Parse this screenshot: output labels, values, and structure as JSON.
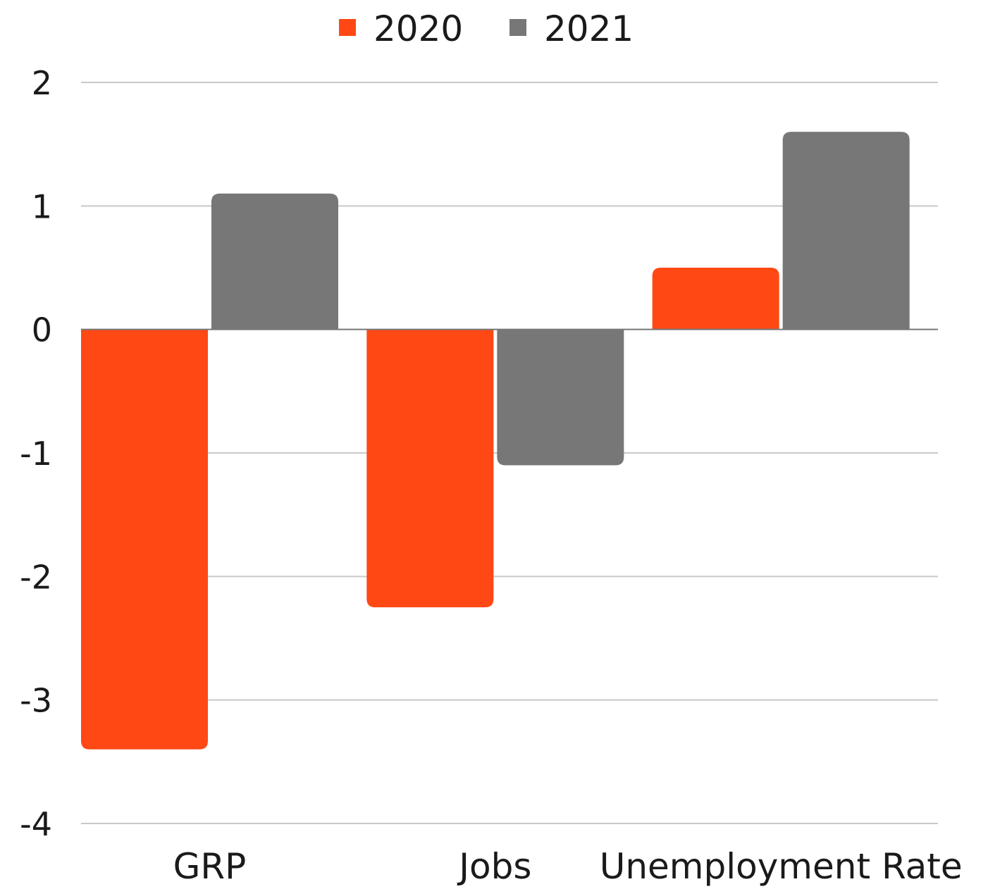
{
  "chart_data": {
    "type": "bar",
    "title": "",
    "xlabel": "",
    "ylabel": "",
    "categories": [
      "GRP",
      "Jobs",
      "Unemployment Rate"
    ],
    "series": [
      {
        "name": "2020",
        "color": "#FF4814",
        "values": [
          -3.4,
          -2.25,
          0.5
        ]
      },
      {
        "name": "2021",
        "color": "#777777",
        "values": [
          1.1,
          -1.1,
          1.6
        ]
      }
    ],
    "ylim": [
      -4,
      2
    ],
    "yticks": [
      2,
      1,
      0,
      -1,
      -2,
      -3,
      -4
    ],
    "ytick_labels": [
      "2",
      "1",
      "0",
      "-1",
      "-2",
      "-3",
      "-4"
    ],
    "grid": true,
    "legend": "top-center",
    "colors": {
      "grid": "#C8C8C8",
      "zero_line": "#777777"
    }
  }
}
